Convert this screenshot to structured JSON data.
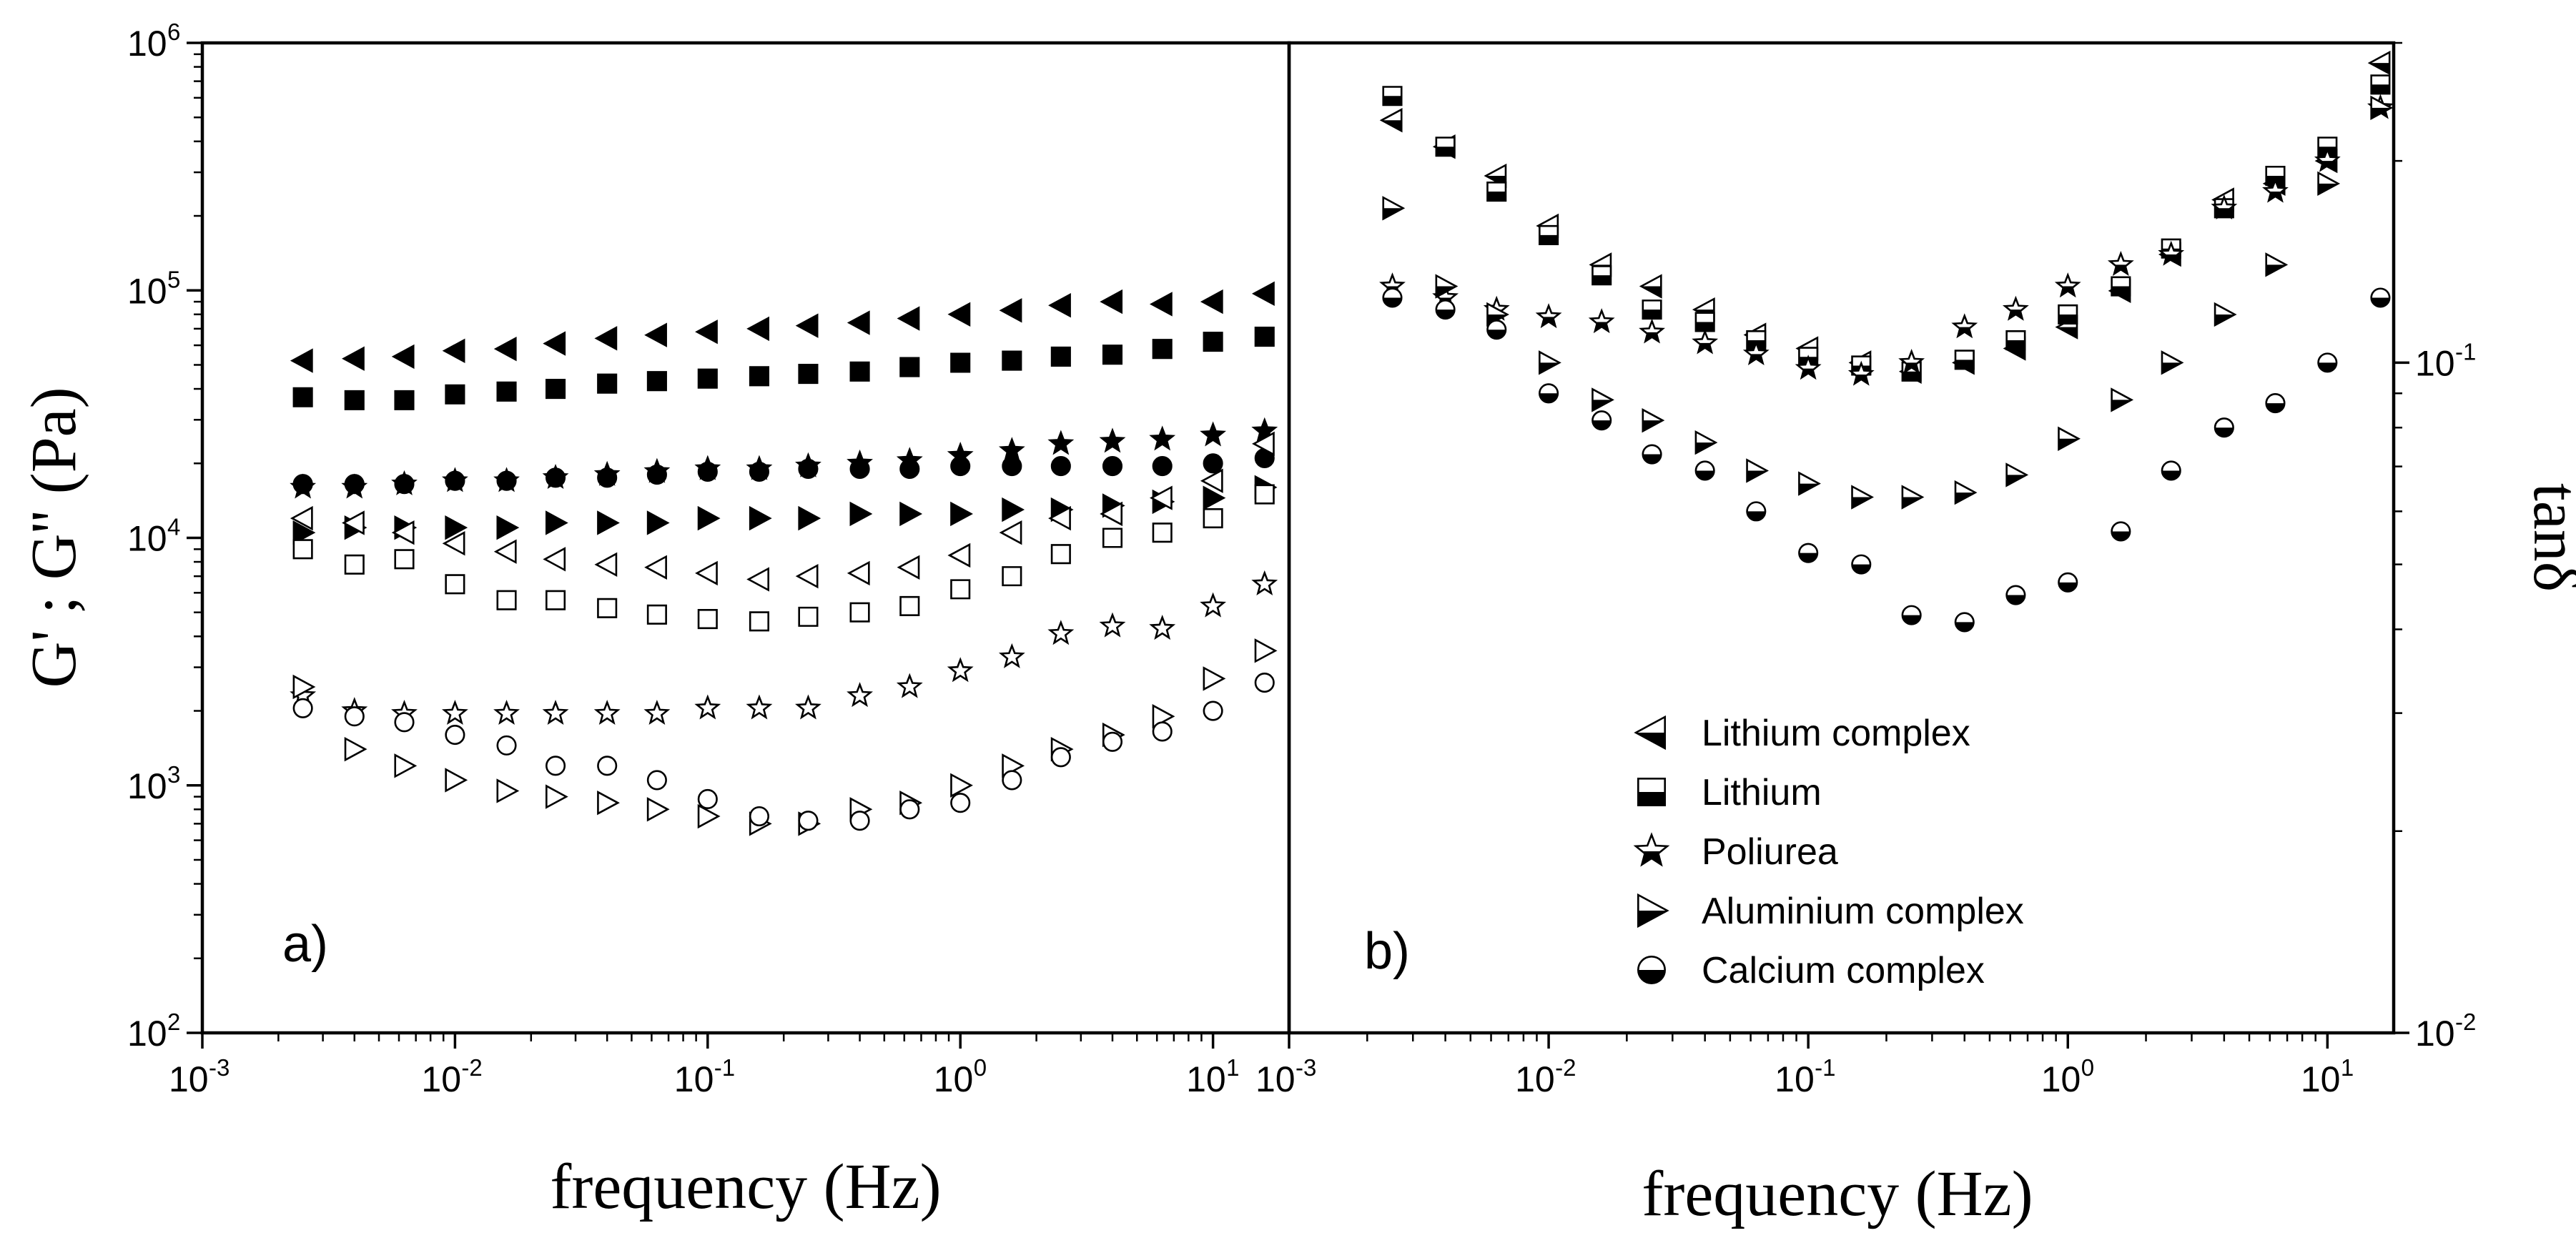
{
  "chart_data": [
    {
      "type": "scatter",
      "panel_label": "a)",
      "xlabel": "frequency (Hz)",
      "ylabel": "G' ; G'' (Pa)",
      "xscale": "log",
      "yscale": "log",
      "xlim": [
        0.001,
        20
      ],
      "ylim": [
        100,
        1000000
      ],
      "x_ticks": [
        {
          "base": "10",
          "exp": "-3"
        },
        {
          "base": "10",
          "exp": "-2"
        },
        {
          "base": "10",
          "exp": "-1"
        },
        {
          "base": "10",
          "exp": "0"
        },
        {
          "base": "10",
          "exp": "1"
        }
      ],
      "y_ticks": [
        {
          "base": "10",
          "exp": "2"
        },
        {
          "base": "10",
          "exp": "3"
        },
        {
          "base": "10",
          "exp": "4"
        },
        {
          "base": "10",
          "exp": "5"
        },
        {
          "base": "10",
          "exp": "6"
        }
      ],
      "x": [
        0.0025,
        0.004,
        0.0063,
        0.01,
        0.016,
        0.025,
        0.04,
        0.063,
        0.1,
        0.16,
        0.25,
        0.4,
        0.63,
        1.0,
        1.6,
        2.5,
        4.0,
        6.3,
        10,
        16
      ],
      "series": [
        {
          "name": "Lithium complex G'",
          "marker": "triangle-left",
          "fill": "full",
          "values": [
            52000,
            53000,
            54000,
            57000,
            58000,
            61000,
            64000,
            66000,
            68000,
            70000,
            72000,
            74000,
            77000,
            80000,
            83000,
            87000,
            90000,
            88000,
            90000,
            97000
          ]
        },
        {
          "name": "Lithium G'",
          "marker": "square",
          "fill": "full",
          "values": [
            37000,
            36000,
            36000,
            38000,
            39000,
            40000,
            42000,
            43000,
            44000,
            45000,
            46000,
            47000,
            49000,
            51000,
            52000,
            54000,
            55000,
            58000,
            62000,
            65000
          ]
        },
        {
          "name": "Poliurea G'",
          "marker": "star",
          "fill": "full",
          "values": [
            16000,
            16000,
            16500,
            17000,
            17000,
            17500,
            18000,
            18500,
            19000,
            19000,
            19500,
            20000,
            20500,
            21500,
            22500,
            24000,
            24500,
            25000,
            26000,
            27000
          ]
        },
        {
          "name": "Calcium complex G'",
          "marker": "circle",
          "fill": "full",
          "values": [
            16500,
            16500,
            16500,
            17000,
            17000,
            17500,
            17500,
            18000,
            18500,
            18500,
            19000,
            19000,
            19000,
            19500,
            19500,
            19500,
            19500,
            19500,
            20000,
            21000
          ]
        },
        {
          "name": "Aluminium complex G'",
          "marker": "triangle-right",
          "fill": "full",
          "values": [
            10500,
            11000,
            11000,
            11000,
            11000,
            11500,
            11500,
            11500,
            12000,
            12000,
            12000,
            12500,
            12500,
            12500,
            13000,
            13000,
            13500,
            14000,
            14500,
            16000
          ]
        },
        {
          "name": "Lithium complex G''",
          "marker": "triangle-left",
          "fill": "open",
          "values": [
            12000,
            11500,
            10500,
            9500,
            8800,
            8200,
            7800,
            7600,
            7200,
            6800,
            7000,
            7200,
            7600,
            8500,
            10500,
            12000,
            12500,
            14500,
            17000,
            24000
          ]
        },
        {
          "name": "Lithium G''",
          "marker": "square",
          "fill": "open",
          "values": [
            9000,
            7800,
            8200,
            6500,
            5600,
            5600,
            5200,
            4900,
            4700,
            4600,
            4800,
            5000,
            5300,
            6200,
            7000,
            8600,
            10000,
            10500,
            12000,
            15000
          ]
        },
        {
          "name": "Poliurea G''",
          "marker": "star",
          "fill": "open",
          "values": [
            2300,
            2000,
            1950,
            1950,
            1950,
            1950,
            1950,
            1950,
            2050,
            2050,
            2050,
            2300,
            2500,
            2900,
            3300,
            4100,
            4400,
            4300,
            5300,
            6500
          ]
        },
        {
          "name": "Aluminium complex G''",
          "marker": "triangle-right",
          "fill": "open",
          "values": [
            2500,
            1400,
            1200,
            1050,
            950,
            900,
            850,
            800,
            750,
            700,
            700,
            800,
            850,
            1000,
            1200,
            1400,
            1600,
            1900,
            2700,
            3500
          ]
        },
        {
          "name": "Calcium complex G''",
          "marker": "circle",
          "fill": "open",
          "values": [
            2050,
            1900,
            1800,
            1600,
            1450,
            1200,
            1200,
            1050,
            880,
            750,
            720,
            720,
            800,
            850,
            1050,
            1300,
            1500,
            1650,
            2000,
            2600
          ]
        }
      ]
    },
    {
      "type": "scatter",
      "panel_label": "b)",
      "xlabel": "frequency (Hz)",
      "ylabel": "tanδ",
      "xscale": "log",
      "yscale": "log",
      "xlim": [
        0.001,
        18
      ],
      "ylim": [
        0.01,
        0.3
      ],
      "x_ticks": [
        {
          "base": "10",
          "exp": "-3"
        },
        {
          "base": "10",
          "exp": "-2"
        },
        {
          "base": "10",
          "exp": "-1"
        },
        {
          "base": "10",
          "exp": "0"
        },
        {
          "base": "10",
          "exp": "1"
        }
      ],
      "y_ticks": [
        {
          "base": "10",
          "exp": "-2"
        },
        {
          "base": "10",
          "exp": "-1"
        }
      ],
      "x": [
        0.0025,
        0.004,
        0.0063,
        0.01,
        0.016,
        0.025,
        0.04,
        0.063,
        0.1,
        0.16,
        0.25,
        0.4,
        0.63,
        1.0,
        1.6,
        2.5,
        4.0,
        6.3,
        10,
        16
      ],
      "series": [
        {
          "name": "Lithium complex",
          "marker": "triangle-left",
          "fill": "half",
          "values": [
            0.23,
            0.21,
            0.19,
            0.16,
            0.14,
            0.13,
            0.12,
            0.11,
            0.105,
            0.1,
            0.097,
            0.1,
            0.105,
            0.113,
            0.128,
            0.145,
            0.175,
            0.185,
            0.2,
            0.28
          ]
        },
        {
          "name": "Lithium",
          "marker": "square",
          "fill": "half",
          "values": [
            0.25,
            0.21,
            0.18,
            0.155,
            0.135,
            0.12,
            0.115,
            0.108,
            0.102,
            0.099,
            0.097,
            0.101,
            0.108,
            0.118,
            0.13,
            0.148,
            0.17,
            0.19,
            0.21,
            0.26
          ]
        },
        {
          "name": "Poliurea",
          "marker": "star",
          "fill": "half",
          "values": [
            0.13,
            0.125,
            0.12,
            0.117,
            0.115,
            0.111,
            0.107,
            0.103,
            0.098,
            0.096,
            0.1,
            0.113,
            0.12,
            0.13,
            0.14,
            0.145,
            0.17,
            0.18,
            0.2,
            0.24
          ]
        },
        {
          "name": "Aluminium complex",
          "marker": "triangle-right",
          "fill": "half",
          "values": [
            0.17,
            0.13,
            0.118,
            0.1,
            0.088,
            0.082,
            0.076,
            0.069,
            0.066,
            0.063,
            0.063,
            0.064,
            0.068,
            0.077,
            0.088,
            0.1,
            0.118,
            0.14,
            0.185,
            0.24
          ]
        },
        {
          "name": "Calcium complex",
          "marker": "circle",
          "fill": "half",
          "values": [
            0.125,
            0.12,
            0.112,
            0.09,
            0.082,
            0.073,
            0.069,
            0.06,
            0.052,
            0.05,
            0.042,
            0.041,
            0.045,
            0.047,
            0.056,
            0.069,
            0.08,
            0.087,
            0.1,
            0.125
          ]
        }
      ],
      "legend": {
        "position": "bottom-center",
        "entries": [
          {
            "label": "Lithium complex",
            "marker": "triangle-left"
          },
          {
            "label": "Lithium",
            "marker": "square"
          },
          {
            "label": "Poliurea",
            "marker": "star"
          },
          {
            "label": "Aluminium complex",
            "marker": "triangle-right"
          },
          {
            "label": "Calcium complex",
            "marker": "circle"
          }
        ]
      }
    }
  ]
}
